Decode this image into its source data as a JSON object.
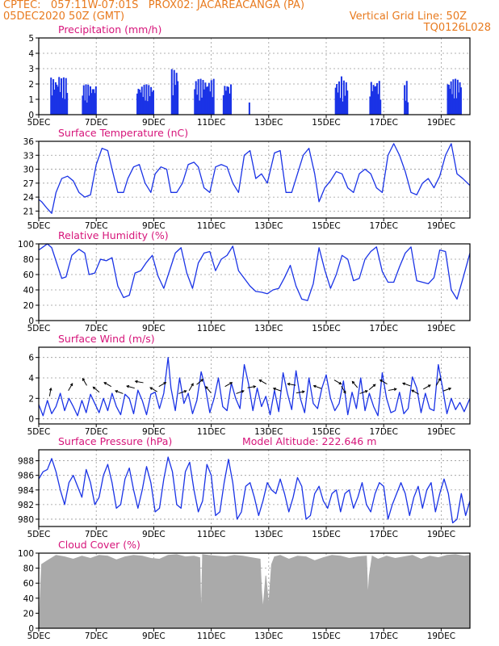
{
  "header": {
    "line1_left": "CPTEC:   057:11W-07:01S   PROX02: JACAREACANGA (PA)",
    "line2_left": "05DEC2020 50Z (GMT)",
    "line2_right": "Vertical Grid Line: 50Z",
    "line3_right": "TQ0126L028"
  },
  "colors": {
    "header": "#e87a1e",
    "title": "#d6157a",
    "series": "#1a33e6",
    "cloud": "#aaaaaa"
  },
  "x_axis": {
    "tick_labels": [
      "5DEC",
      "7DEC",
      "9DEC",
      "11DEC",
      "13DEC",
      "15DEC",
      "17DEC",
      "19DEC"
    ],
    "tick_days": [
      0,
      2,
      4,
      6,
      8,
      10,
      12,
      14
    ],
    "range_days": [
      0,
      15
    ]
  },
  "chart_data": [
    {
      "type": "bar",
      "title": "Precipitation (mm/h)",
      "ylim": [
        0,
        5
      ],
      "yticks": [
        "0",
        "1",
        "2",
        "3",
        "4",
        "5"
      ],
      "clusters": [
        {
          "start": 0.4,
          "end": 1.0,
          "peak": 2.7
        },
        {
          "start": 1.5,
          "end": 2.0,
          "peak": 2.2
        },
        {
          "start": 3.4,
          "end": 4.0,
          "peak": 2.2
        },
        {
          "start": 4.6,
          "end": 4.85,
          "peak": 3.3
        },
        {
          "start": 5.4,
          "end": 6.1,
          "peak": 2.6
        },
        {
          "start": 6.4,
          "end": 6.7,
          "peak": 2.3
        },
        {
          "start": 7.3,
          "end": 7.35,
          "peak": 0.8
        },
        {
          "start": 10.3,
          "end": 10.75,
          "peak": 2.5
        },
        {
          "start": 11.5,
          "end": 11.9,
          "peak": 2.5
        },
        {
          "start": 12.7,
          "end": 12.85,
          "peak": 2.2
        },
        {
          "start": 14.2,
          "end": 14.7,
          "peak": 2.6
        }
      ]
    },
    {
      "type": "line",
      "title": "Surface Temperature (nC)",
      "ylim": [
        19.5,
        36
      ],
      "yticks": [
        "21",
        "24",
        "27",
        "30",
        "33",
        "36"
      ],
      "tick_values": [
        21,
        24,
        27,
        30,
        33,
        36
      ],
      "x": [
        0,
        0.1,
        0.3,
        0.45,
        0.6,
        0.8,
        1.0,
        1.2,
        1.4,
        1.6,
        1.8,
        2.0,
        2.2,
        2.4,
        2.55,
        2.75,
        2.95,
        3.1,
        3.3,
        3.5,
        3.7,
        3.9,
        4.05,
        4.25,
        4.45,
        4.6,
        4.8,
        5.0,
        5.2,
        5.4,
        5.55,
        5.75,
        5.95,
        6.15,
        6.35,
        6.55,
        6.75,
        6.95,
        7.15,
        7.35,
        7.55,
        7.75,
        7.95,
        8.2,
        8.4,
        8.6,
        8.8,
        9.0,
        9.2,
        9.4,
        9.6,
        9.75,
        9.95,
        10.15,
        10.35,
        10.55,
        10.75,
        10.95,
        11.15,
        11.35,
        11.55,
        11.75,
        11.95,
        12.15,
        12.35,
        12.55,
        12.75,
        12.95,
        13.15,
        13.35,
        13.55,
        13.75,
        13.95,
        14.15,
        14.35,
        14.55,
        14.75,
        15.0
      ],
      "y": [
        23.5,
        23,
        21.5,
        20.5,
        25,
        28,
        28.5,
        27.5,
        25,
        24,
        24.5,
        31,
        34.5,
        34,
        30,
        25,
        25,
        28,
        30.5,
        31,
        27,
        25,
        29,
        30.5,
        30,
        25,
        25,
        27,
        31,
        31.5,
        30.5,
        26,
        25,
        30.5,
        31,
        30.5,
        27,
        25,
        33,
        34,
        28,
        29,
        27,
        33.5,
        34,
        25,
        25,
        29,
        33,
        34.5,
        29,
        23,
        26,
        27.5,
        29.5,
        29,
        26,
        25,
        29,
        30,
        29,
        26,
        25,
        33,
        35.5,
        33,
        29.5,
        25,
        24.5,
        27,
        28,
        26,
        28.5,
        33,
        35.5,
        29,
        28,
        26.5
      ]
    },
    {
      "type": "line",
      "title": "Relative Humidity (%)",
      "ylim": [
        0,
        100
      ],
      "yticks": [
        "0",
        "20",
        "40",
        "60",
        "80",
        "100"
      ],
      "tick_values": [
        0,
        20,
        40,
        60,
        80,
        100
      ],
      "x": [
        0,
        0.15,
        0.3,
        0.45,
        0.65,
        0.8,
        0.95,
        1.15,
        1.4,
        1.6,
        1.75,
        1.95,
        2.15,
        2.35,
        2.55,
        2.75,
        2.95,
        3.15,
        3.35,
        3.55,
        3.75,
        3.95,
        4.15,
        4.35,
        4.55,
        4.75,
        4.95,
        5.15,
        5.35,
        5.55,
        5.75,
        5.95,
        6.15,
        6.35,
        6.55,
        6.75,
        6.95,
        7.15,
        7.35,
        7.55,
        7.75,
        7.95,
        8.15,
        8.35,
        8.55,
        8.75,
        8.95,
        9.15,
        9.35,
        9.55,
        9.75,
        9.95,
        10.15,
        10.35,
        10.55,
        10.75,
        10.95,
        11.15,
        11.35,
        11.55,
        11.75,
        11.95,
        12.15,
        12.35,
        12.55,
        12.75,
        12.95,
        13.15,
        13.35,
        13.55,
        13.75,
        13.95,
        14.15,
        14.35,
        14.55,
        14.75,
        15.0
      ],
      "y": [
        92,
        96,
        100,
        95,
        72,
        55,
        57,
        85,
        93,
        88,
        60,
        62,
        80,
        78,
        82,
        45,
        30,
        33,
        62,
        65,
        76,
        85,
        58,
        42,
        65,
        88,
        95,
        62,
        42,
        75,
        88,
        90,
        65,
        80,
        85,
        97,
        65,
        55,
        45,
        38,
        37,
        35,
        40,
        42,
        56,
        72,
        45,
        28,
        26,
        48,
        95,
        66,
        42,
        60,
        85,
        80,
        52,
        55,
        80,
        90,
        96,
        64,
        50,
        50,
        70,
        88,
        96,
        52,
        50,
        48,
        56,
        92,
        90,
        40,
        28,
        54,
        88
      ]
    },
    {
      "type": "line",
      "title": "Surface Wind (m/s)",
      "ylim": [
        -0.5,
        7
      ],
      "yticks": [
        "0",
        "2",
        "4",
        "6"
      ],
      "tick_values": [
        0,
        2,
        4,
        6
      ],
      "x": [
        0,
        0.15,
        0.3,
        0.45,
        0.6,
        0.75,
        0.9,
        1.05,
        1.2,
        1.35,
        1.5,
        1.65,
        1.8,
        1.95,
        2.1,
        2.25,
        2.4,
        2.55,
        2.7,
        2.85,
        3.0,
        3.15,
        3.3,
        3.45,
        3.6,
        3.75,
        3.9,
        4.05,
        4.2,
        4.35,
        4.5,
        4.6,
        4.75,
        4.9,
        5.05,
        5.2,
        5.35,
        5.5,
        5.65,
        5.8,
        5.95,
        6.1,
        6.25,
        6.4,
        6.55,
        6.7,
        6.85,
        7.0,
        7.15,
        7.3,
        7.45,
        7.6,
        7.75,
        7.9,
        8.05,
        8.2,
        8.35,
        8.5,
        8.65,
        8.8,
        8.95,
        9.1,
        9.25,
        9.4,
        9.55,
        9.7,
        9.85,
        10.0,
        10.15,
        10.3,
        10.45,
        10.6,
        10.75,
        10.9,
        11.05,
        11.2,
        11.35,
        11.5,
        11.65,
        11.8,
        11.95,
        12.1,
        12.25,
        12.4,
        12.55,
        12.7,
        12.85,
        13.0,
        13.15,
        13.3,
        13.45,
        13.6,
        13.75,
        13.9,
        14.05,
        14.2,
        14.35,
        14.5,
        14.65,
        14.8,
        15.0
      ],
      "y": [
        1.4,
        0.3,
        1.8,
        0.5,
        1.2,
        2.5,
        0.8,
        2.0,
        1.2,
        0.3,
        1.8,
        0.6,
        2.4,
        1.5,
        0.6,
        2.0,
        0.8,
        2.5,
        1.2,
        0.4,
        2.4,
        2.0,
        0.5,
        2.8,
        1.8,
        0.4,
        2.4,
        2.6,
        1.0,
        2.5,
        6.0,
        3.0,
        0.8,
        4.0,
        1.5,
        2.5,
        0.5,
        1.8,
        4.6,
        3.0,
        0.6,
        2.0,
        4.0,
        1.2,
        0.8,
        3.5,
        2.0,
        1.0,
        5.3,
        3.4,
        0.8,
        3.0,
        1.2,
        2.2,
        0.4,
        2.8,
        0.7,
        4.5,
        2.5,
        0.9,
        4.7,
        2.0,
        0.6,
        4.0,
        1.5,
        1.0,
        3.0,
        4.3,
        2.0,
        0.8,
        1.5,
        3.7,
        0.4,
        2.6,
        1.0,
        4.0,
        0.8,
        2.5,
        1.2,
        0.3,
        4.5,
        2.0,
        0.6,
        0.8,
        2.6,
        0.5,
        1.0,
        4.1,
        3.0,
        0.6,
        2.5,
        1.0,
        0.8,
        5.3,
        3.0,
        0.5,
        2.0,
        0.9,
        1.6,
        0.7,
        2.0
      ]
    },
    {
      "type": "line",
      "title": "Surface Pressure (hPa)",
      "subtitle": "Model Altitude: 222.646 m",
      "ylim": [
        979,
        989.5
      ],
      "yticks": [
        "980",
        "982",
        "984",
        "986",
        "988"
      ],
      "tick_values": [
        980,
        982,
        984,
        986,
        988
      ],
      "x": [
        0,
        0.15,
        0.3,
        0.45,
        0.6,
        0.75,
        0.9,
        1.05,
        1.2,
        1.35,
        1.5,
        1.65,
        1.8,
        1.95,
        2.1,
        2.25,
        2.4,
        2.55,
        2.7,
        2.85,
        3.0,
        3.15,
        3.3,
        3.45,
        3.6,
        3.75,
        3.9,
        4.05,
        4.2,
        4.35,
        4.5,
        4.65,
        4.8,
        4.95,
        5.1,
        5.25,
        5.4,
        5.55,
        5.7,
        5.85,
        6.0,
        6.15,
        6.3,
        6.45,
        6.6,
        6.75,
        6.9,
        7.05,
        7.2,
        7.35,
        7.5,
        7.65,
        7.8,
        7.95,
        8.1,
        8.25,
        8.4,
        8.55,
        8.7,
        8.85,
        9.0,
        9.15,
        9.3,
        9.45,
        9.6,
        9.75,
        9.9,
        10.05,
        10.2,
        10.35,
        10.5,
        10.65,
        10.8,
        10.95,
        11.1,
        11.25,
        11.4,
        11.55,
        11.7,
        11.85,
        12.0,
        12.15,
        12.3,
        12.45,
        12.6,
        12.75,
        12.9,
        13.05,
        13.2,
        13.35,
        13.5,
        13.65,
        13.8,
        13.95,
        14.1,
        14.25,
        14.4,
        14.55,
        14.7,
        14.85,
        15.0
      ],
      "y": [
        985.5,
        986.5,
        986.8,
        988.3,
        986.5,
        984,
        982,
        985,
        986,
        984.5,
        983,
        986.8,
        985,
        982,
        983,
        986,
        987.5,
        985,
        981.5,
        982,
        985.5,
        987,
        984,
        981.5,
        984,
        987.2,
        985,
        981,
        981.5,
        985.5,
        988.5,
        986.5,
        982,
        981.5,
        986.5,
        987.8,
        984,
        981,
        982.5,
        987.5,
        986,
        980.5,
        981,
        985,
        988.2,
        985,
        980,
        981,
        984.5,
        985,
        983,
        980.5,
        982.5,
        985,
        984,
        983.5,
        985.5,
        983.5,
        981,
        983,
        985.7,
        984.5,
        980,
        980.5,
        983.5,
        984.5,
        982.5,
        981.5,
        983.5,
        984,
        981,
        983.5,
        984,
        981.5,
        983,
        985,
        982,
        981,
        983.5,
        985,
        984.5,
        980,
        982,
        983.5,
        985,
        983.5,
        980.5,
        983,
        984.5,
        981.5,
        984,
        985,
        981,
        983.5,
        985.5,
        983.5,
        979.5,
        980,
        983.5,
        980.5,
        982.5
      ]
    },
    {
      "type": "area",
      "title": "Cloud Cover (%)",
      "ylim": [
        0,
        100
      ],
      "yticks": [
        "0",
        "20",
        "40",
        "60",
        "80",
        "100"
      ],
      "tick_values": [
        0,
        20,
        40,
        60,
        80,
        100
      ],
      "x": [
        0,
        0.1,
        0.3,
        0.6,
        0.9,
        1.2,
        1.5,
        1.8,
        2.1,
        2.4,
        2.7,
        3.0,
        3.3,
        3.6,
        3.9,
        4.2,
        4.5,
        4.8,
        5.1,
        5.4,
        5.6,
        5.65,
        5.7,
        5.9,
        6.2,
        6.5,
        6.8,
        7.1,
        7.4,
        7.7,
        7.75,
        7.8,
        7.9,
        8.0,
        8.1,
        8.2,
        8.4,
        8.7,
        9.0,
        9.3,
        9.6,
        9.9,
        10.2,
        10.5,
        10.8,
        11.1,
        11.4,
        11.45,
        11.5,
        11.6,
        11.8,
        12.1,
        12.4,
        12.7,
        13.0,
        13.3,
        13.6,
        13.9,
        14.2,
        14.5,
        14.8,
        15.0
      ],
      "y": [
        0,
        85,
        90,
        97,
        95,
        92,
        96,
        93,
        97,
        96,
        91,
        95,
        97,
        96,
        93,
        92,
        97,
        98,
        95,
        96,
        94,
        8,
        98,
        97,
        96,
        95,
        97,
        96,
        94,
        92,
        50,
        25,
        70,
        30,
        85,
        95,
        97,
        92,
        96,
        95,
        90,
        94,
        97,
        96,
        93,
        95,
        96,
        40,
        70,
        96,
        92,
        96,
        93,
        95,
        97,
        92,
        96,
        94,
        97,
        98,
        96,
        97
      ]
    }
  ]
}
